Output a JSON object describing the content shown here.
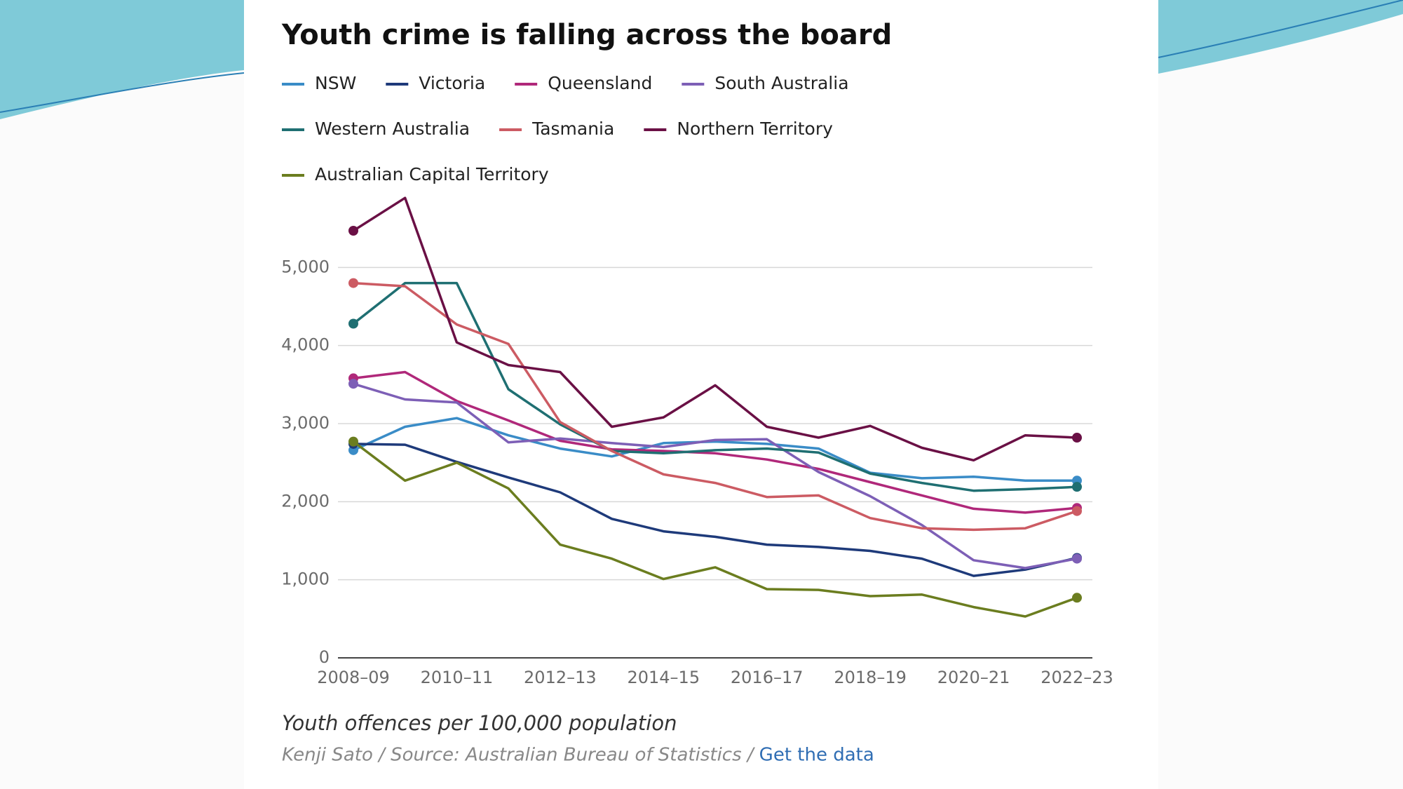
{
  "chart_data": {
    "type": "line",
    "title": "Youth crime is falling across the board",
    "subtitle": "Youth offences per 100,000 population",
    "credit": "Kenji Sato / Source: Australian Bureau of Statistics /",
    "link": "Get the data",
    "categories": [
      "2008–09",
      null,
      "2010–11",
      null,
      "2012–13",
      null,
      "2014–15",
      null,
      "2016–17",
      null,
      "2018–19",
      null,
      "2020–21",
      null,
      "2022–23"
    ],
    "ylim": [
      0,
      6000
    ],
    "yticks": [
      0,
      {
        "value": 1000,
        "label": "1,000"
      },
      {
        "value": 2000,
        "label": "2,000"
      },
      {
        "value": 3000,
        "label": "3,000"
      },
      {
        "value": 4000,
        "label": "4,000"
      },
      {
        "value": 5000,
        "label": "5,000"
      }
    ],
    "grid": true,
    "series": [
      {
        "name": "NSW",
        "color": "#3a8cc7",
        "values": [
          2660,
          2960,
          3070,
          2850,
          2680,
          2580,
          2750,
          2770,
          2740,
          2680,
          2370,
          2300,
          2320,
          2270,
          2270
        ]
      },
      {
        "name": "Victoria",
        "color": "#1e3a7a",
        "values": [
          2740,
          2730,
          2510,
          2310,
          2120,
          1780,
          1620,
          1550,
          1450,
          1420,
          1370,
          1270,
          1050,
          1130,
          1280
        ]
      },
      {
        "name": "Queensland",
        "color": "#b0287a",
        "values": [
          3580,
          3660,
          3290,
          3040,
          2780,
          2670,
          2650,
          2620,
          2540,
          2420,
          2250,
          2080,
          1910,
          1860,
          1920
        ]
      },
      {
        "name": "South Australia",
        "color": "#7d5fb6",
        "values": [
          3510,
          3310,
          3270,
          2760,
          2810,
          2750,
          2700,
          2790,
          2800,
          2380,
          2070,
          1700,
          1250,
          1150,
          1270
        ]
      },
      {
        "name": "Western Australia",
        "color": "#1f6f72",
        "values": [
          4280,
          4800,
          4800,
          3440,
          2990,
          2650,
          2620,
          2660,
          2680,
          2630,
          2360,
          2240,
          2140,
          2160,
          2190
        ]
      },
      {
        "name": "Tasmania",
        "color": "#cc5b63",
        "values": [
          4800,
          4760,
          4270,
          4020,
          3020,
          2650,
          2350,
          2240,
          2060,
          2080,
          1790,
          1660,
          1640,
          1660,
          1880
        ]
      },
      {
        "name": "Northern Territory",
        "color": "#6a1045",
        "values": [
          5470,
          5890,
          4040,
          3750,
          3660,
          2960,
          3080,
          3490,
          2960,
          2820,
          2970,
          2690,
          2530,
          2850,
          2820
        ]
      },
      {
        "name": "Australian Capital Territory",
        "color": "#6b7d1f",
        "values": [
          2770,
          2270,
          2500,
          2170,
          1450,
          1270,
          1010,
          1160,
          880,
          870,
          790,
          810,
          650,
          530,
          770
        ]
      }
    ]
  }
}
